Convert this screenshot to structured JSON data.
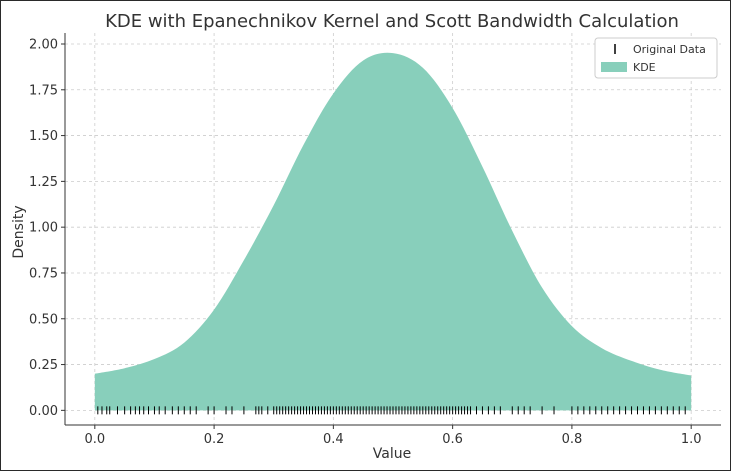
{
  "colors": {
    "kde_fill": "#88cfbb",
    "rug": "#000000",
    "grid": "#cccccc",
    "axis": "#333333"
  },
  "chart_data": {
    "type": "area",
    "title": "KDE with Epanechnikov Kernel and Scott Bandwidth Calculation",
    "xlabel": "Value",
    "ylabel": "Density",
    "xlim": [
      -0.05,
      1.05
    ],
    "ylim": [
      -0.08,
      2.06
    ],
    "xticks": [
      0.0,
      0.2,
      0.4,
      0.6,
      0.8,
      1.0
    ],
    "xtick_labels": [
      "0.0",
      "0.2",
      "0.4",
      "0.6",
      "0.8",
      "1.0"
    ],
    "yticks": [
      0.0,
      0.25,
      0.5,
      0.75,
      1.0,
      1.25,
      1.5,
      1.75,
      2.0
    ],
    "ytick_labels": [
      "0.00",
      "0.25",
      "0.50",
      "0.75",
      "1.00",
      "1.25",
      "1.50",
      "1.75",
      "2.00"
    ],
    "grid": true,
    "legend": {
      "placement": "top-right",
      "entries": [
        "Original Data",
        "KDE"
      ]
    },
    "series": [
      {
        "name": "KDE",
        "type": "area",
        "x": [
          0.0,
          0.05,
          0.1,
          0.15,
          0.2,
          0.25,
          0.3,
          0.35,
          0.4,
          0.45,
          0.5,
          0.55,
          0.6,
          0.65,
          0.7,
          0.75,
          0.8,
          0.85,
          0.9,
          0.95,
          1.0
        ],
        "y": [
          0.2,
          0.23,
          0.28,
          0.37,
          0.55,
          0.82,
          1.12,
          1.45,
          1.73,
          1.91,
          1.95,
          1.87,
          1.65,
          1.33,
          0.98,
          0.67,
          0.46,
          0.34,
          0.27,
          0.22,
          0.19
        ]
      },
      {
        "name": "Original Data",
        "type": "rug",
        "y": 0,
        "x": [
          0.005,
          0.012,
          0.02,
          0.025,
          0.038,
          0.05,
          0.06,
          0.068,
          0.075,
          0.082,
          0.09,
          0.1,
          0.108,
          0.118,
          0.13,
          0.14,
          0.15,
          0.16,
          0.17,
          0.19,
          0.2,
          0.22,
          0.23,
          0.25,
          0.27,
          0.275,
          0.28,
          0.29,
          0.3,
          0.305,
          0.31,
          0.315,
          0.32,
          0.325,
          0.33,
          0.335,
          0.34,
          0.345,
          0.35,
          0.355,
          0.36,
          0.365,
          0.37,
          0.375,
          0.38,
          0.385,
          0.39,
          0.395,
          0.4,
          0.405,
          0.41,
          0.415,
          0.42,
          0.425,
          0.43,
          0.435,
          0.44,
          0.445,
          0.45,
          0.455,
          0.46,
          0.465,
          0.47,
          0.475,
          0.48,
          0.485,
          0.49,
          0.495,
          0.5,
          0.505,
          0.51,
          0.515,
          0.52,
          0.525,
          0.53,
          0.535,
          0.54,
          0.545,
          0.55,
          0.555,
          0.56,
          0.565,
          0.57,
          0.575,
          0.58,
          0.585,
          0.59,
          0.595,
          0.6,
          0.605,
          0.61,
          0.615,
          0.62,
          0.625,
          0.63,
          0.64,
          0.65,
          0.66,
          0.67,
          0.68,
          0.7,
          0.71,
          0.72,
          0.73,
          0.75,
          0.77,
          0.8,
          0.81,
          0.82,
          0.83,
          0.84,
          0.85,
          0.86,
          0.87,
          0.88,
          0.89,
          0.9,
          0.91,
          0.92,
          0.93,
          0.94,
          0.95,
          0.96,
          0.97,
          0.98,
          0.99
        ]
      }
    ]
  }
}
